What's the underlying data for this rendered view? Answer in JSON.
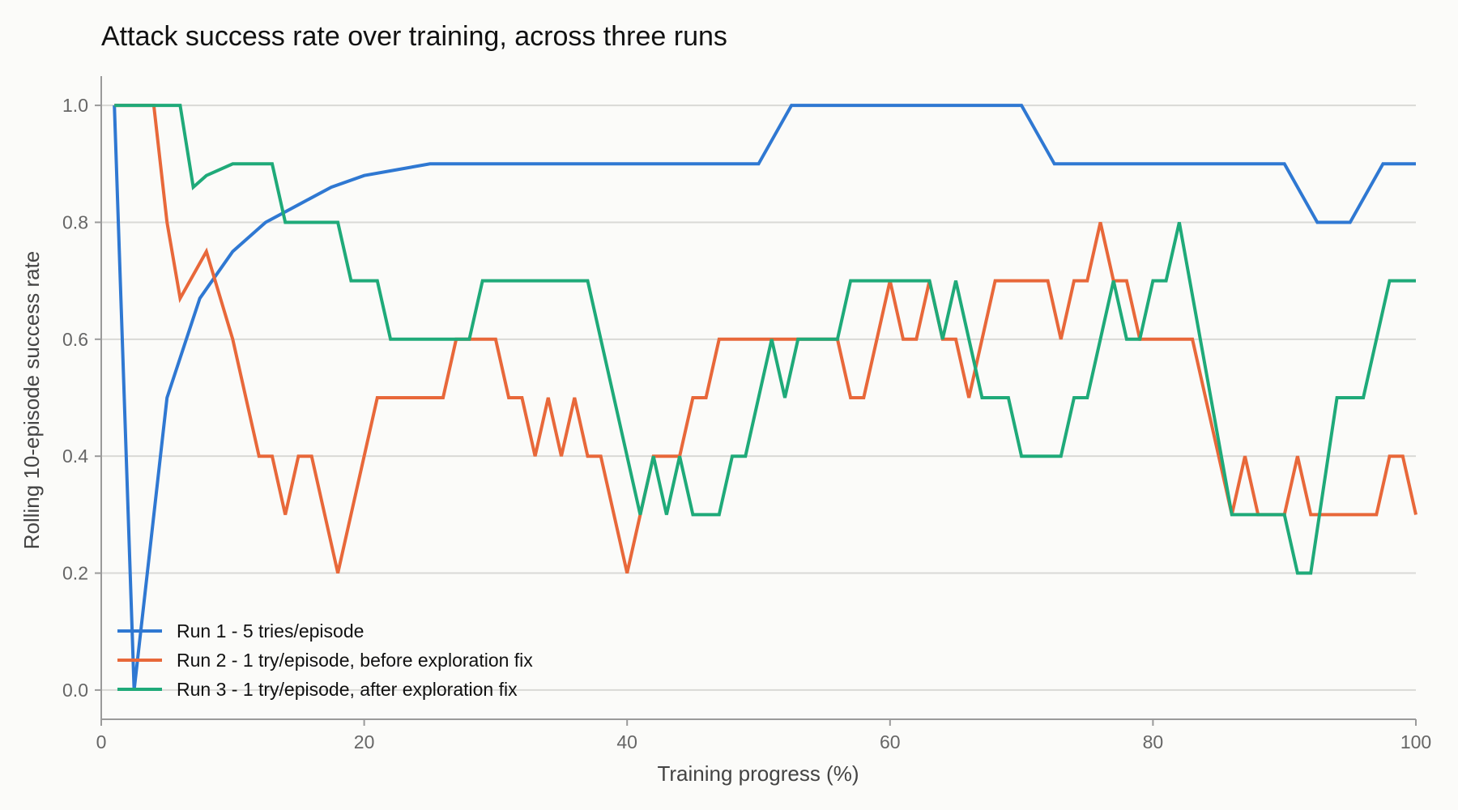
{
  "chart_data": {
    "type": "line",
    "title": "Attack success rate over training, across three runs",
    "xlabel": "Training progress (%)",
    "ylabel": "Rolling 10-episode success rate",
    "xlim": [
      0,
      100
    ],
    "ylim": [
      -0.05,
      1.05
    ],
    "xticks": [
      0,
      20,
      40,
      60,
      80,
      100
    ],
    "yticks": [
      0.0,
      0.2,
      0.4,
      0.6,
      0.8,
      1.0
    ],
    "ytick_labels": [
      "0.0",
      "0.2",
      "0.4",
      "0.6",
      "0.8",
      "1.0"
    ],
    "grid": "horizontal",
    "legend_position": "bottom-left",
    "series": [
      {
        "name": "Run 1 - 5 tries/episode",
        "color": "#2f78d2",
        "x": [
          1,
          2.5,
          5,
          7.5,
          10,
          12.5,
          15,
          17.5,
          20,
          22.5,
          25,
          27.5,
          30,
          35,
          40,
          45,
          50,
          52.5,
          55,
          60,
          65,
          70,
          72.5,
          75,
          80,
          85,
          90,
          92.5,
          95,
          97.5,
          100
        ],
        "y": [
          1.0,
          0.0,
          0.5,
          0.67,
          0.75,
          0.8,
          0.83,
          0.86,
          0.88,
          0.89,
          0.9,
          0.9,
          0.9,
          0.9,
          0.9,
          0.9,
          0.9,
          1.0,
          1.0,
          1.0,
          1.0,
          1.0,
          0.9,
          0.9,
          0.9,
          0.9,
          0.9,
          0.8,
          0.8,
          0.9,
          0.9
        ]
      },
      {
        "name": "Run 2 - 1 try/episode, before exploration fix",
        "color": "#e8683a",
        "x": [
          1,
          4,
          5,
          6,
          8,
          10,
          12,
          13,
          14,
          15,
          16,
          18,
          21,
          26,
          27,
          28,
          30,
          31,
          32,
          33,
          34,
          35,
          36,
          37,
          38,
          40,
          41,
          42,
          44,
          45,
          46,
          47,
          48,
          56,
          57,
          58,
          60,
          61,
          62,
          63,
          64,
          65,
          66,
          67,
          68,
          72,
          73,
          74,
          75,
          76,
          77,
          78,
          79,
          83,
          86,
          87,
          88,
          90,
          91,
          92,
          97,
          98,
          99,
          100
        ],
        "y": [
          1.0,
          1.0,
          0.8,
          0.67,
          0.75,
          0.6,
          0.4,
          0.4,
          0.3,
          0.4,
          0.4,
          0.2,
          0.5,
          0.5,
          0.6,
          0.6,
          0.6,
          0.5,
          0.5,
          0.4,
          0.5,
          0.4,
          0.5,
          0.4,
          0.4,
          0.2,
          0.3,
          0.4,
          0.4,
          0.5,
          0.5,
          0.6,
          0.6,
          0.6,
          0.5,
          0.5,
          0.7,
          0.6,
          0.6,
          0.7,
          0.6,
          0.6,
          0.5,
          0.6,
          0.7,
          0.7,
          0.6,
          0.7,
          0.7,
          0.8,
          0.7,
          0.7,
          0.6,
          0.6,
          0.3,
          0.4,
          0.3,
          0.3,
          0.4,
          0.3,
          0.3,
          0.4,
          0.4,
          0.3
        ]
      },
      {
        "name": "Run 3 - 1 try/episode, after exploration fix",
        "color": "#1faa79",
        "x": [
          1,
          6,
          7,
          8,
          10,
          13,
          14,
          18,
          19,
          21,
          22,
          28,
          29,
          37,
          41,
          42,
          43,
          44,
          45,
          47,
          48,
          49,
          51,
          52,
          53,
          56,
          57,
          63,
          64,
          65,
          67,
          69,
          70,
          73,
          74,
          75,
          77,
          78,
          79,
          80,
          81,
          82,
          86,
          87,
          90,
          91,
          92,
          94,
          96,
          98,
          100
        ],
        "y": [
          1.0,
          1.0,
          0.86,
          0.88,
          0.9,
          0.9,
          0.8,
          0.8,
          0.7,
          0.7,
          0.6,
          0.6,
          0.7,
          0.7,
          0.3,
          0.4,
          0.3,
          0.4,
          0.3,
          0.3,
          0.4,
          0.4,
          0.6,
          0.5,
          0.6,
          0.6,
          0.7,
          0.7,
          0.6,
          0.7,
          0.5,
          0.5,
          0.4,
          0.4,
          0.5,
          0.5,
          0.7,
          0.6,
          0.6,
          0.7,
          0.7,
          0.8,
          0.3,
          0.3,
          0.3,
          0.2,
          0.2,
          0.5,
          0.5,
          0.7,
          0.7
        ]
      }
    ]
  }
}
